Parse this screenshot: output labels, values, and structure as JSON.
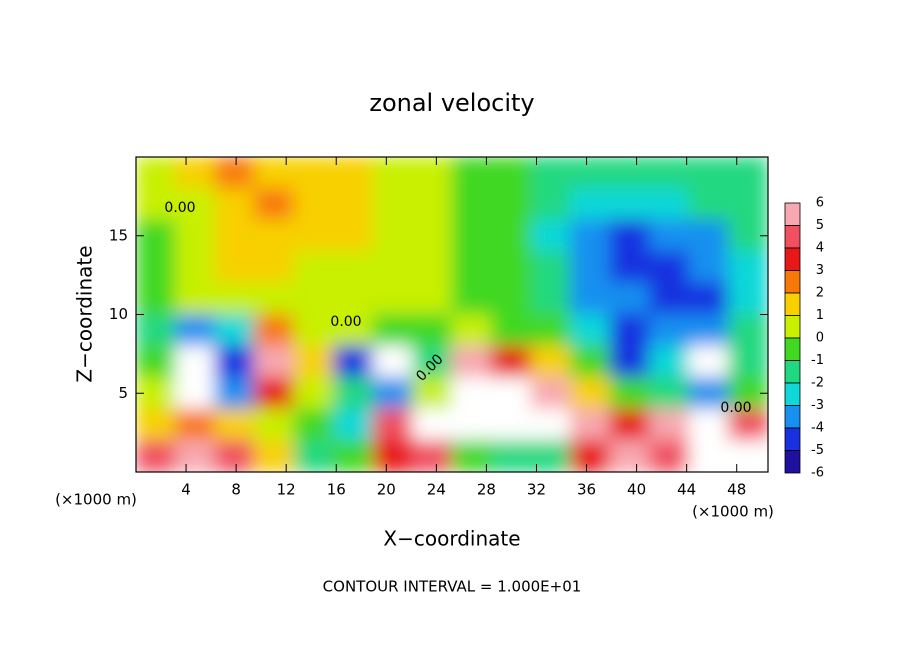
{
  "chart_data": {
    "type": "heatmap",
    "title": "zonal velocity",
    "x_label": "X−coordinate",
    "y_label": "Z−coordinate",
    "x_unit": "(×1000 m)",
    "x_unit_right": "(×1000 m)",
    "footer": "CONTOUR INTERVAL = 1.000E+01",
    "contour_labels": [
      "0.00",
      "0.00",
      "0.00",
      "0.00"
    ],
    "xlim": [
      0,
      50.5
    ],
    "ylim": [
      0,
      20
    ],
    "xticks": [
      4,
      8,
      12,
      16,
      20,
      24,
      28,
      32,
      36,
      40,
      44,
      48
    ],
    "yticks": [
      5,
      10,
      15
    ],
    "colorbar_ticks": [
      6,
      5,
      4,
      3,
      2,
      1,
      0,
      -1,
      -2,
      -3,
      -4,
      -5,
      -6
    ],
    "colors": [
      "#f8a8b0",
      "#f05060",
      "#e81818",
      "#f87808",
      "#f8d000",
      "#c8f000",
      "#40d820",
      "#20d880",
      "#10d8d8",
      "#1890f0",
      "#1830e0",
      "#2010a0"
    ],
    "z": [
      [
        0.5,
        1.5,
        2,
        1.5,
        1,
        1,
        0.5,
        0,
        -0.5,
        -1,
        -1.5,
        -2,
        -2,
        -2,
        -1.5,
        -1.5
      ],
      [
        0,
        0.5,
        1.5,
        2,
        1.5,
        1,
        0.5,
        0,
        -0.5,
        -1,
        -2,
        -3,
        -3,
        -2.5,
        -2,
        -1.5
      ],
      [
        -0.5,
        0,
        1,
        1.5,
        1,
        1,
        0.5,
        0,
        -0.5,
        -1,
        -2.5,
        -4,
        -4.5,
        -4,
        -3.5,
        -2
      ],
      [
        -1,
        0.5,
        1,
        1,
        0.5,
        0.5,
        0.5,
        0,
        -0.5,
        -1,
        -2,
        -4,
        -4.5,
        -5,
        -4,
        -2.5
      ],
      [
        -1,
        0,
        0.5,
        0.5,
        0.5,
        0.5,
        0,
        0,
        -0.5,
        -1,
        -2,
        -4,
        -4,
        -5,
        -4.5,
        -3
      ],
      [
        -2,
        -4,
        -3,
        2,
        0.5,
        0,
        -0.5,
        -1,
        0,
        -0.5,
        -1,
        -3,
        -5,
        -4,
        -4,
        -2
      ],
      [
        -1,
        -8,
        -5,
        5,
        1,
        -5,
        -8,
        -2,
        5,
        3,
        1,
        -1,
        -5,
        -3,
        -7,
        -2
      ],
      [
        0,
        -8,
        -4,
        3,
        0,
        -2,
        -4,
        0,
        8,
        8,
        5,
        1,
        -1,
        -2,
        -4,
        -1
      ],
      [
        1,
        2,
        1,
        0,
        -1,
        -3,
        4,
        8,
        8,
        8,
        8,
        5,
        3,
        5,
        8,
        4
      ],
      [
        4,
        5,
        4,
        1,
        -2,
        -1,
        3,
        4,
        -1,
        -2,
        -2,
        3,
        5,
        4,
        8,
        8
      ]
    ]
  }
}
